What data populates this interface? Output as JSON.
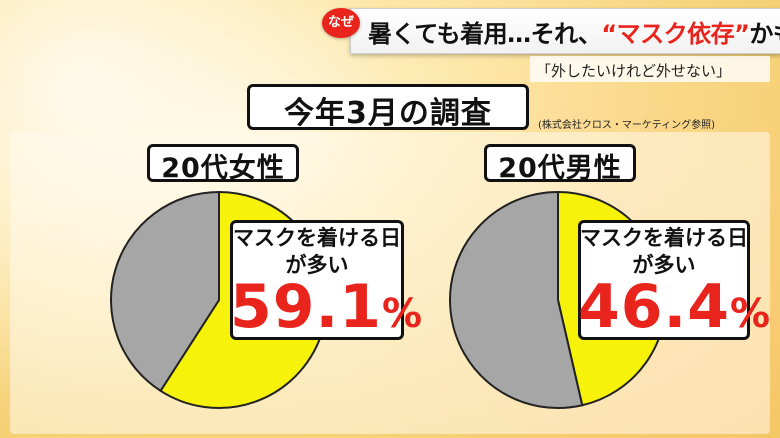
{
  "header": {
    "badge": "なぜ",
    "headline_pre": "暑くても着用…それ、",
    "headline_em": "“マスク依存”",
    "headline_post": "かも",
    "subline": "「外したいけれど外せない」"
  },
  "survey": {
    "title": "今年3月の調査",
    "source": "(株式会社クロス・マーケティング参照)"
  },
  "colors": {
    "yes": "#f7f20a",
    "other": "#a6a6a6",
    "accent": "#e8241c"
  },
  "chart_data": [
    {
      "type": "pie",
      "title": "20代女性",
      "slices": [
        {
          "label": "マスクを着ける日が多い",
          "value": 59.1
        },
        {
          "label": "",
          "value": 40.9
        }
      ],
      "callout": {
        "line1": "マスクを着ける日",
        "line2": "が多い",
        "num": "59.1",
        "unit": "%"
      }
    },
    {
      "type": "pie",
      "title": "20代男性",
      "slices": [
        {
          "label": "マスクを着ける日が多い",
          "value": 46.4
        },
        {
          "label": "",
          "value": 53.6
        }
      ],
      "callout": {
        "line1": "マスクを着ける日",
        "line2": "が多い",
        "num": "46.4",
        "unit": "%"
      }
    }
  ]
}
